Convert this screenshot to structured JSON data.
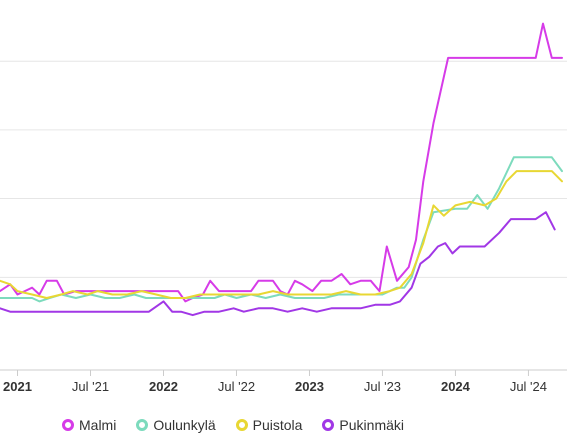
{
  "chart_data": {
    "type": "line",
    "title": "",
    "xlabel": "",
    "ylabel": "",
    "x_ticks": [
      {
        "label": "2021",
        "t": 2021.0,
        "bold": true
      },
      {
        "label": "Jul '21",
        "t": 2021.5,
        "bold": false
      },
      {
        "label": "2022",
        "t": 2022.0,
        "bold": true
      },
      {
        "label": "Jul '22",
        "t": 2022.5,
        "bold": false
      },
      {
        "label": "2023",
        "t": 2023.0,
        "bold": true
      },
      {
        "label": "Jul '23",
        "t": 2023.5,
        "bold": false
      },
      {
        "label": "2024",
        "t": 2024.0,
        "bold": true
      },
      {
        "label": "Jul '24",
        "t": 2024.5,
        "bold": false
      }
    ],
    "x_range": [
      2020.88,
      2024.73
    ],
    "y_range": [
      0,
      100
    ],
    "grid": true,
    "gridlines": [
      27,
      50,
      70,
      90
    ],
    "legend_position": "bottom",
    "series": [
      {
        "name": "Malmi",
        "color": "#d63be8",
        "points": [
          [
            2020.88,
            23
          ],
          [
            2020.95,
            25
          ],
          [
            2021.0,
            22
          ],
          [
            2021.05,
            23
          ],
          [
            2021.1,
            24
          ],
          [
            2021.15,
            22
          ],
          [
            2021.2,
            26
          ],
          [
            2021.27,
            26
          ],
          [
            2021.32,
            22
          ],
          [
            2021.4,
            23
          ],
          [
            2021.5,
            23
          ],
          [
            2021.6,
            23
          ],
          [
            2021.7,
            23
          ],
          [
            2021.8,
            23
          ],
          [
            2021.9,
            23
          ],
          [
            2022.0,
            23
          ],
          [
            2022.1,
            23
          ],
          [
            2022.15,
            20
          ],
          [
            2022.2,
            21
          ],
          [
            2022.27,
            22
          ],
          [
            2022.32,
            26
          ],
          [
            2022.38,
            23
          ],
          [
            2022.5,
            23
          ],
          [
            2022.6,
            23
          ],
          [
            2022.65,
            26
          ],
          [
            2022.75,
            26
          ],
          [
            2022.8,
            23
          ],
          [
            2022.85,
            22
          ],
          [
            2022.9,
            26
          ],
          [
            2022.95,
            25
          ],
          [
            2023.02,
            23
          ],
          [
            2023.08,
            26
          ],
          [
            2023.15,
            26
          ],
          [
            2023.22,
            28
          ],
          [
            2023.28,
            25
          ],
          [
            2023.35,
            26
          ],
          [
            2023.42,
            26
          ],
          [
            2023.48,
            23
          ],
          [
            2023.53,
            36
          ],
          [
            2023.6,
            26
          ],
          [
            2023.68,
            30
          ],
          [
            2023.73,
            38
          ],
          [
            2023.78,
            55
          ],
          [
            2023.85,
            72
          ],
          [
            2023.95,
            91
          ],
          [
            2024.1,
            91
          ],
          [
            2024.3,
            91
          ],
          [
            2024.46,
            91
          ],
          [
            2024.55,
            91
          ],
          [
            2024.6,
            101
          ],
          [
            2024.66,
            91
          ],
          [
            2024.73,
            91
          ]
        ]
      },
      {
        "name": "Oulunkylä",
        "color": "#7ddbbd",
        "points": [
          [
            2020.88,
            21
          ],
          [
            2021.0,
            21
          ],
          [
            2021.1,
            21
          ],
          [
            2021.15,
            20
          ],
          [
            2021.22,
            21
          ],
          [
            2021.3,
            22
          ],
          [
            2021.4,
            21
          ],
          [
            2021.5,
            22
          ],
          [
            2021.6,
            21
          ],
          [
            2021.7,
            21
          ],
          [
            2021.8,
            22
          ],
          [
            2021.88,
            21
          ],
          [
            2022.0,
            21
          ],
          [
            2022.1,
            21
          ],
          [
            2022.2,
            21
          ],
          [
            2022.35,
            21
          ],
          [
            2022.42,
            22
          ],
          [
            2022.5,
            21
          ],
          [
            2022.6,
            22
          ],
          [
            2022.7,
            21
          ],
          [
            2022.8,
            22
          ],
          [
            2022.9,
            21
          ],
          [
            2023.0,
            21
          ],
          [
            2023.1,
            21
          ],
          [
            2023.2,
            22
          ],
          [
            2023.3,
            22
          ],
          [
            2023.4,
            22
          ],
          [
            2023.5,
            22
          ],
          [
            2023.6,
            24
          ],
          [
            2023.65,
            24
          ],
          [
            2023.7,
            27
          ],
          [
            2023.78,
            38
          ],
          [
            2023.85,
            46
          ],
          [
            2024.0,
            47
          ],
          [
            2024.08,
            47
          ],
          [
            2024.15,
            51
          ],
          [
            2024.22,
            47
          ],
          [
            2024.3,
            53
          ],
          [
            2024.4,
            62
          ],
          [
            2024.5,
            62
          ],
          [
            2024.6,
            62
          ],
          [
            2024.66,
            62
          ],
          [
            2024.73,
            58
          ]
        ]
      },
      {
        "name": "Puistola",
        "color": "#e8d733",
        "points": [
          [
            2020.88,
            26
          ],
          [
            2020.95,
            25
          ],
          [
            2021.0,
            23
          ],
          [
            2021.1,
            22
          ],
          [
            2021.2,
            21
          ],
          [
            2021.3,
            22
          ],
          [
            2021.38,
            23
          ],
          [
            2021.48,
            22
          ],
          [
            2021.55,
            23
          ],
          [
            2021.65,
            22
          ],
          [
            2021.75,
            22
          ],
          [
            2021.85,
            23
          ],
          [
            2021.95,
            22
          ],
          [
            2022.05,
            21
          ],
          [
            2022.15,
            21
          ],
          [
            2022.25,
            22
          ],
          [
            2022.35,
            22
          ],
          [
            2022.45,
            22
          ],
          [
            2022.55,
            22
          ],
          [
            2022.65,
            22
          ],
          [
            2022.75,
            23
          ],
          [
            2022.85,
            22
          ],
          [
            2022.95,
            22
          ],
          [
            2023.05,
            22
          ],
          [
            2023.15,
            22
          ],
          [
            2023.25,
            23
          ],
          [
            2023.35,
            22
          ],
          [
            2023.45,
            22
          ],
          [
            2023.55,
            23
          ],
          [
            2023.62,
            24
          ],
          [
            2023.7,
            28
          ],
          [
            2023.78,
            37
          ],
          [
            2023.85,
            48
          ],
          [
            2023.92,
            45
          ],
          [
            2024.0,
            48
          ],
          [
            2024.1,
            49
          ],
          [
            2024.2,
            48
          ],
          [
            2024.28,
            50
          ],
          [
            2024.35,
            55
          ],
          [
            2024.42,
            58
          ],
          [
            2024.5,
            58
          ],
          [
            2024.6,
            58
          ],
          [
            2024.66,
            58
          ],
          [
            2024.73,
            55
          ]
        ]
      },
      {
        "name": "Pukinmäki",
        "color": "#a137e6",
        "points": [
          [
            2020.88,
            18
          ],
          [
            2020.95,
            17
          ],
          [
            2021.1,
            17
          ],
          [
            2021.2,
            17
          ],
          [
            2021.3,
            17
          ],
          [
            2021.4,
            17
          ],
          [
            2021.5,
            17
          ],
          [
            2021.6,
            17
          ],
          [
            2021.7,
            17
          ],
          [
            2021.8,
            17
          ],
          [
            2021.9,
            17
          ],
          [
            2022.0,
            20
          ],
          [
            2022.06,
            17
          ],
          [
            2022.12,
            17
          ],
          [
            2022.2,
            16
          ],
          [
            2022.28,
            17
          ],
          [
            2022.38,
            17
          ],
          [
            2022.48,
            18
          ],
          [
            2022.55,
            17
          ],
          [
            2022.65,
            18
          ],
          [
            2022.75,
            18
          ],
          [
            2022.85,
            17
          ],
          [
            2022.95,
            18
          ],
          [
            2023.05,
            17
          ],
          [
            2023.15,
            18
          ],
          [
            2023.25,
            18
          ],
          [
            2023.35,
            18
          ],
          [
            2023.45,
            19
          ],
          [
            2023.55,
            19
          ],
          [
            2023.62,
            20
          ],
          [
            2023.7,
            24
          ],
          [
            2023.76,
            31
          ],
          [
            2023.82,
            33
          ],
          [
            2023.88,
            36
          ],
          [
            2023.93,
            37
          ],
          [
            2023.98,
            34
          ],
          [
            2024.03,
            36
          ],
          [
            2024.1,
            36
          ],
          [
            2024.2,
            36
          ],
          [
            2024.3,
            40
          ],
          [
            2024.38,
            44
          ],
          [
            2024.46,
            44
          ],
          [
            2024.55,
            44
          ],
          [
            2024.62,
            46
          ],
          [
            2024.68,
            41
          ]
        ]
      }
    ]
  }
}
